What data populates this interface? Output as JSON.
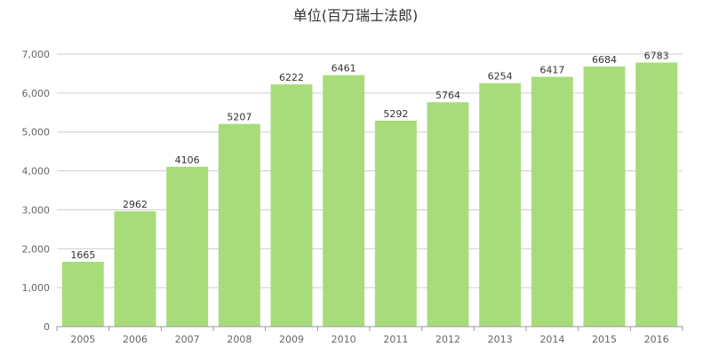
{
  "chart_data": {
    "type": "bar",
    "title": "单位(百万瑞士法郎)",
    "categories": [
      "2005",
      "2006",
      "2007",
      "2008",
      "2009",
      "2010",
      "2011",
      "2012",
      "2013",
      "2014",
      "2015",
      "2016"
    ],
    "values": [
      1665,
      2962,
      4106,
      5207,
      6222,
      6461,
      5292,
      5764,
      6254,
      6417,
      6684,
      6783
    ],
    "y_ticks": [
      "0",
      "1,000",
      "2,000",
      "3,000",
      "4,000",
      "5,000",
      "6,000",
      "7,000"
    ],
    "ylim": [
      0,
      7000
    ],
    "grid": true,
    "data_labels": true,
    "bar_color": "#a8dc7a"
  }
}
